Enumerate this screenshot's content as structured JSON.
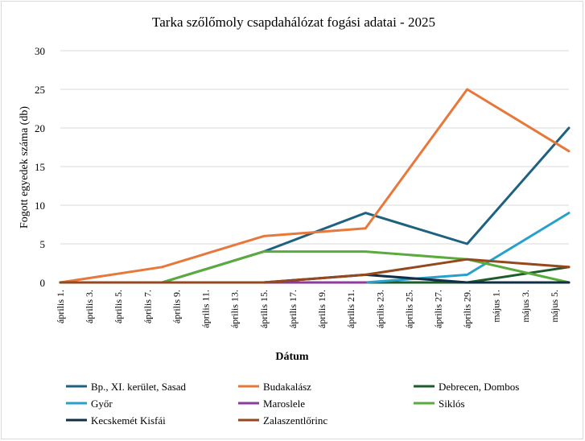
{
  "chart_data": {
    "type": "line",
    "title": "Tarka szőlőmoly csapdahálózat fogási adatai - 2025",
    "xlabel": "Dátum",
    "ylabel": "Fogott egyedek száma (db)",
    "ylim": [
      0,
      30
    ],
    "yticks": [
      "0",
      "5",
      "10",
      "15",
      "20",
      "25",
      "30"
    ],
    "grid": "horizontal",
    "legend_position": "bottom",
    "x_tick_labels": [
      "április 1.",
      "április 3.",
      "április 5.",
      "április 7.",
      "április 9.",
      "április 11.",
      "április 13.",
      "április 15.",
      "április 17.",
      "április 19.",
      "április 21.",
      "április 23.",
      "április 25.",
      "április 27.",
      "április 29.",
      "május 1.",
      "május 3.",
      "május 5."
    ],
    "x_range_days": [
      1,
      36
    ],
    "series": [
      {
        "name": "Bp., XI. kerület, Sasad",
        "color": "#1f6180",
        "points": [
          {
            "x": "április 1.",
            "day": 1,
            "y": 0
          },
          {
            "x": "április 8.",
            "day": 8,
            "y": 0
          },
          {
            "x": "április 15.",
            "day": 15,
            "y": 4
          },
          {
            "x": "április 22.",
            "day": 22,
            "y": 9
          },
          {
            "x": "április 29.",
            "day": 29,
            "y": 5
          },
          {
            "x": "május 6.",
            "day": 36,
            "y": 20
          }
        ]
      },
      {
        "name": "Budakalász",
        "color": "#e8773a",
        "points": [
          {
            "x": "április 1.",
            "day": 1,
            "y": 0
          },
          {
            "x": "április 8.",
            "day": 8,
            "y": 2
          },
          {
            "x": "április 15.",
            "day": 15,
            "y": 6
          },
          {
            "x": "április 22.",
            "day": 22,
            "y": 7
          },
          {
            "x": "április 29.",
            "day": 29,
            "y": 25
          },
          {
            "x": "május 6.",
            "day": 36,
            "y": 17
          }
        ]
      },
      {
        "name": "Debrecen, Dombos",
        "color": "#1d5c2a",
        "points": [
          {
            "x": "április 1.",
            "day": 1,
            "y": 0
          },
          {
            "x": "április 8.",
            "day": 8,
            "y": 0
          },
          {
            "x": "április 15.",
            "day": 15,
            "y": 0
          },
          {
            "x": "április 22.",
            "day": 22,
            "y": 0
          },
          {
            "x": "április 29.",
            "day": 29,
            "y": 0
          },
          {
            "x": "május 6.",
            "day": 36,
            "y": 2
          }
        ]
      },
      {
        "name": "Győr",
        "color": "#27a0cc",
        "points": [
          {
            "x": "április 1.",
            "day": 1,
            "y": 0
          },
          {
            "x": "április 8.",
            "day": 8,
            "y": 0
          },
          {
            "x": "április 15.",
            "day": 15,
            "y": 0
          },
          {
            "x": "április 22.",
            "day": 22,
            "y": 0
          },
          {
            "x": "április 29.",
            "day": 29,
            "y": 1
          },
          {
            "x": "május 6.",
            "day": 36,
            "y": 9
          }
        ]
      },
      {
        "name": "Maroslele",
        "color": "#8e3aa0",
        "points": [
          {
            "x": "április 1.",
            "day": 1,
            "y": 0
          },
          {
            "x": "április 8.",
            "day": 8,
            "y": 0
          },
          {
            "x": "április 15.",
            "day": 15,
            "y": 0
          },
          {
            "x": "április 22.",
            "day": 22,
            "y": 0
          }
        ]
      },
      {
        "name": "Siklós",
        "color": "#5aaa3c",
        "points": [
          {
            "x": "április 8.",
            "day": 8,
            "y": 0
          },
          {
            "x": "április 15.",
            "day": 15,
            "y": 4
          },
          {
            "x": "április 22.",
            "day": 22,
            "y": 4
          },
          {
            "x": "április 29.",
            "day": 29,
            "y": 3
          },
          {
            "x": "május 6.",
            "day": 36,
            "y": 0
          }
        ]
      },
      {
        "name": "Kecskemét Kisfái",
        "color": "#0f2f47",
        "points": [
          {
            "x": "április 1.",
            "day": 1,
            "y": 0
          },
          {
            "x": "április 8.",
            "day": 8,
            "y": 0
          },
          {
            "x": "április 15.",
            "day": 15,
            "y": 0
          },
          {
            "x": "április 22.",
            "day": 22,
            "y": 1
          },
          {
            "x": "április 29.",
            "day": 29,
            "y": 0
          },
          {
            "x": "május 6.",
            "day": 36,
            "y": 0
          }
        ]
      },
      {
        "name": "Zalaszentlőrinc",
        "color": "#96481d",
        "points": [
          {
            "x": "április 1.",
            "day": 1,
            "y": 0
          },
          {
            "x": "április 8.",
            "day": 8,
            "y": 0
          },
          {
            "x": "április 15.",
            "day": 15,
            "y": 0
          },
          {
            "x": "április 22.",
            "day": 22,
            "y": 1
          },
          {
            "x": "április 29.",
            "day": 29,
            "y": 3
          },
          {
            "x": "május 6.",
            "day": 36,
            "y": 2
          }
        ]
      }
    ]
  }
}
